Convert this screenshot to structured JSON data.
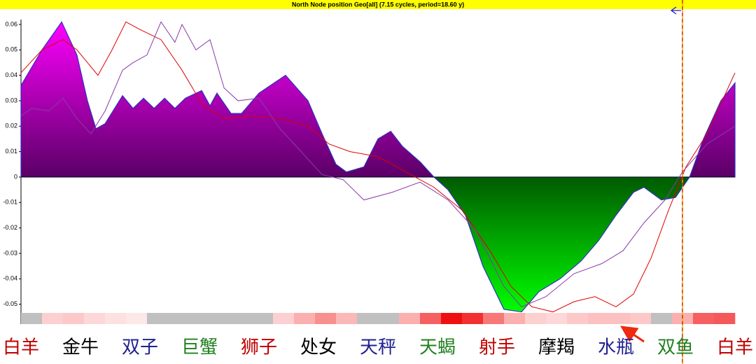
{
  "chart_data": {
    "type": "area",
    "title": "North Node position Geo[all]  (7.15 cycles, period=18.60 y)",
    "xlim": [
      0,
      360
    ],
    "ylim": [
      -0.0534,
      0.0619
    ],
    "yticks": [
      0.06,
      0.05,
      0.04,
      0.03,
      0.02,
      0.01,
      0,
      -0.01,
      -0.02,
      -0.03,
      -0.04,
      -0.05
    ],
    "categories": [
      "白羊",
      "金牛",
      "双子",
      "巨蟹",
      "狮子",
      "处女",
      "天秤",
      "天蝎",
      "射手",
      "摩羯",
      "水瓶",
      "双鱼",
      "白羊"
    ],
    "category_colors": [
      "#c00000",
      "#000000",
      "#202090",
      "#208020",
      "#c00000",
      "#000000",
      "#202090",
      "#208020",
      "#c00000",
      "#000000",
      "#202090",
      "#208020",
      "#c00000"
    ],
    "marker_x": 333.5,
    "area": {
      "positive_color": "#ff00ff",
      "positive_base_color": "#5a0066",
      "negative_base_color": "#005a00",
      "negative_color": "#00ff00",
      "outline_color": "#3030c0",
      "x": [
        0,
        10.6,
        20.5,
        28.2,
        33.5,
        37.8,
        42.4,
        51.2,
        56.5,
        61.8,
        67.1,
        72.4,
        77.6,
        82.9,
        91.1,
        95.3,
        98.8,
        105.9,
        111.2,
        120,
        133.4,
        144.7,
        151.8,
        158.8,
        164.1,
        172.9,
        180,
        186.4,
        192.4,
        201.2,
        208.2,
        215.3,
        224.1,
        232.9,
        243.5,
        252.4,
        261.2,
        271.8,
        282.4,
        291.2,
        300,
        308.8,
        314.1,
        322.9,
        330,
        337.1,
        344.1,
        352.9,
        360
      ],
      "values": [
        0.036,
        0.05,
        0.061,
        0.048,
        0.03,
        0.019,
        0.021,
        0.032,
        0.027,
        0.031,
        0.027,
        0.031,
        0.027,
        0.031,
        0.034,
        0.028,
        0.033,
        0.025,
        0.025,
        0.033,
        0.04,
        0.03,
        0.017,
        0.005,
        0.002,
        0.004,
        0.015,
        0.018,
        0.012,
        0.006,
        0,
        -0.005,
        -0.015,
        -0.035,
        -0.052,
        -0.053,
        -0.045,
        -0.04,
        -0.033,
        -0.025,
        -0.015,
        -0.006,
        -0.004,
        -0.009,
        -0.008,
        0,
        0.015,
        0.03,
        0.037
      ]
    },
    "series": [
      {
        "color": "#e00000",
        "x": [
          0,
          10.6,
          21.2,
          28.2,
          38.8,
          45.9,
          52.9,
          60,
          70.6,
          81.2,
          91.8,
          102.4,
          116.5,
          130.6,
          144.7,
          155.3,
          165.9,
          180,
          194.1,
          208.2,
          222.4,
          236.5,
          247.1,
          257.6,
          268.2,
          278.8,
          289.4,
          300,
          308.8,
          317.6,
          326.5,
          335.3,
          345.9,
          360
        ],
        "values": [
          0.041,
          0.05,
          0.054,
          0.05,
          0.04,
          0.05,
          0.061,
          0.058,
          0.054,
          0.042,
          0.028,
          0.023,
          0.024,
          0.023,
          0.02,
          0.013,
          0.01,
          0.008,
          0.002,
          -0.004,
          -0.013,
          -0.029,
          -0.043,
          -0.051,
          -0.053,
          -0.049,
          -0.047,
          -0.051,
          -0.046,
          -0.032,
          -0.013,
          0.004,
          0.017,
          0.041
        ]
      },
      {
        "color": "#8a3aa8",
        "x": [
          0,
          5.3,
          14.1,
          21.2,
          28.2,
          35.3,
          42.4,
          51.2,
          56.5,
          63.5,
          70.6,
          77.6,
          81.2,
          88.2,
          95.3,
          102.4,
          109.4,
          120,
          130.6,
          141.2,
          151.8,
          162.4,
          172.9,
          187.1,
          201.2,
          215.3,
          229.4,
          243.5,
          252.4,
          264.7,
          278.8,
          292.9,
          303.5,
          314.1,
          324.7,
          333.5,
          345.9,
          360
        ],
        "values": [
          0.024,
          0.027,
          0.026,
          0.031,
          0.023,
          0.017,
          0.026,
          0.042,
          0.045,
          0.048,
          0.061,
          0.053,
          0.06,
          0.05,
          0.054,
          0.035,
          0.03,
          0.031,
          0.019,
          0.01,
          0.001,
          -0.001,
          -0.009,
          -0.006,
          -0.002,
          -0.009,
          -0.021,
          -0.043,
          -0.051,
          -0.047,
          -0.038,
          -0.034,
          -0.029,
          -0.018,
          -0.009,
          0.002,
          0.013,
          0.02
        ]
      }
    ],
    "strip_colors": [
      "#c0c0c0",
      "#fcd0d0",
      "#fcc8c8",
      "#fdd8d8",
      "#fde0e0",
      "#fde8e8",
      "#c0c0c0",
      "#c0c0c0",
      "#c0c0c0",
      "#c0c0c0",
      "#c0c0c0",
      "#c0c0c0",
      "#fcd0d0",
      "#fbb0b0",
      "#f89090",
      "#fbb8b8",
      "#c0c0c0",
      "#c0c0c0",
      "#fbb0b0",
      "#f66060",
      "#ee1010",
      "#f23030",
      "#f87878",
      "#fbb0b0",
      "#fdd0d0",
      "#fdd8d8",
      "#fcc8c8",
      "#fcc0c0",
      "#fbc0c0",
      "#fcc8c8",
      "#c0c0c0",
      "#fbb0b0",
      "#f66060",
      "#f45858"
    ]
  }
}
